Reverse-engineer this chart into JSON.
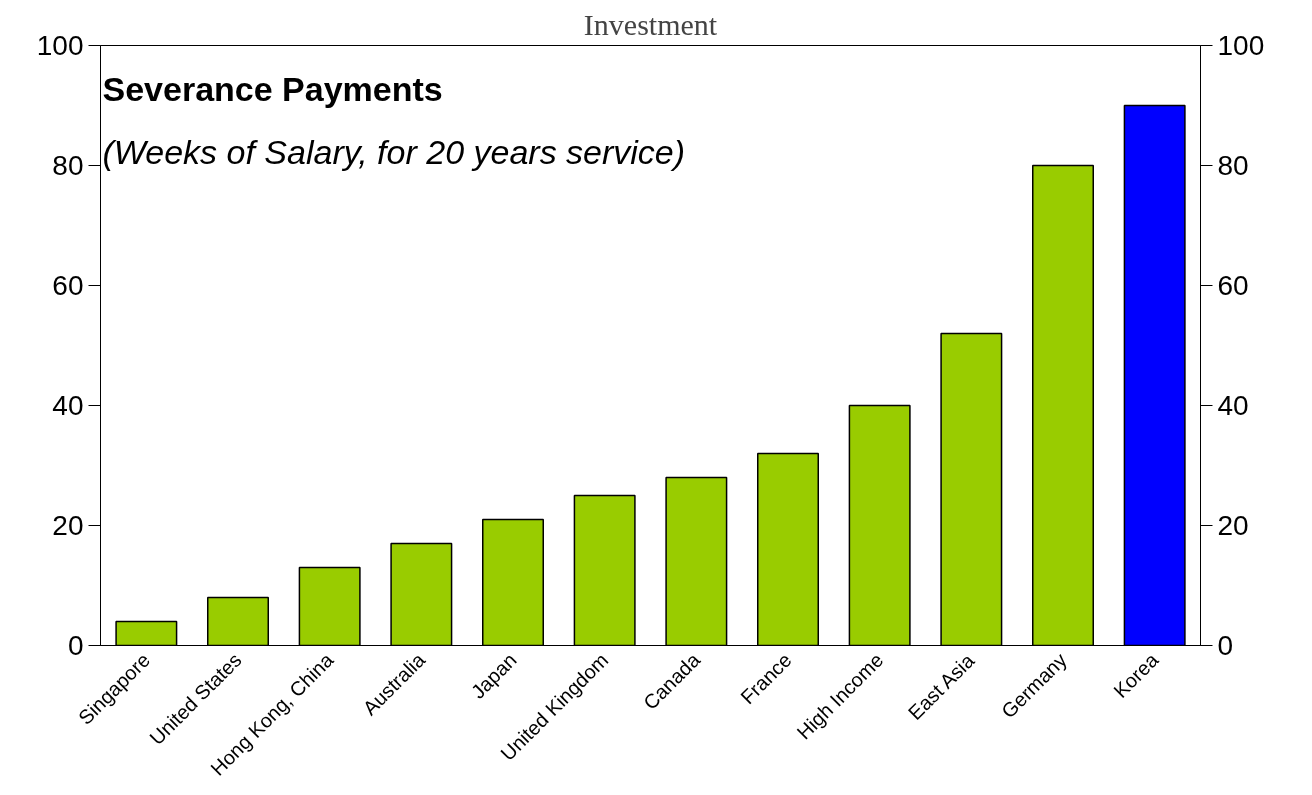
{
  "chart_data": {
    "type": "bar",
    "title": "Severance Payments",
    "subtitle": "(Weeks of Salary, for 20 years service)",
    "annotations": [
      "Investment"
    ],
    "categories": [
      "Singapore",
      "United States",
      "Hong Kong, China",
      "Australia",
      "Japan",
      "United Kingdom",
      "Canada",
      "France",
      "High Income",
      "East Asia",
      "Germany",
      "Korea"
    ],
    "values": [
      4,
      8,
      13,
      17,
      21,
      25,
      28,
      32,
      40,
      52,
      80,
      90
    ],
    "colors": [
      "#99cc00",
      "#99cc00",
      "#99cc00",
      "#99cc00",
      "#99cc00",
      "#99cc00",
      "#99cc00",
      "#99cc00",
      "#99cc00",
      "#99cc00",
      "#99cc00",
      "#0000ff"
    ],
    "ylim": [
      0,
      100
    ],
    "yticks": [
      0,
      20,
      40,
      60,
      80,
      100
    ],
    "y2lim": [
      0,
      100
    ],
    "y2ticks": [
      0,
      20,
      40,
      60,
      80,
      100
    ],
    "grid": false
  }
}
